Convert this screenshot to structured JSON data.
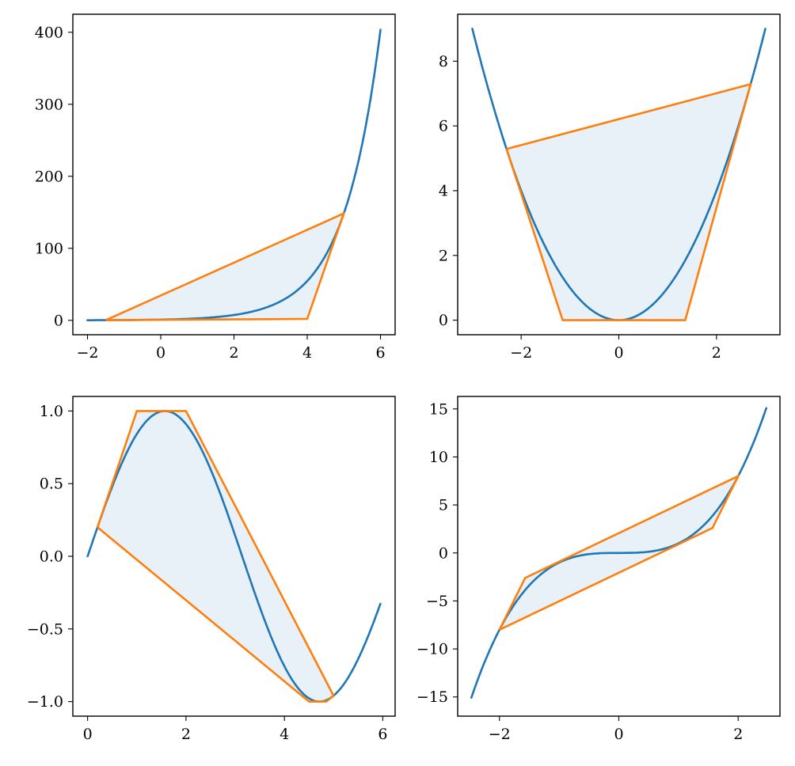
{
  "colors": {
    "curve": "#1f77b4",
    "hull": "#ff7f0e",
    "fill": "#e8f0f8",
    "axes": "#000000"
  },
  "chart_data": [
    {
      "type": "line",
      "function": "exp",
      "x_range": [
        -2,
        6
      ],
      "xlim": [
        -2.4,
        6.4
      ],
      "ylim": [
        -20,
        425
      ],
      "xticks": [
        -2,
        0,
        2,
        4,
        6
      ],
      "yticks": [
        0,
        100,
        200,
        300,
        400
      ],
      "xtick_labels": [
        "−2",
        "0",
        "2",
        "4",
        "6"
      ],
      "ytick_labels": [
        "0",
        "100",
        "200",
        "300",
        "400"
      ],
      "series": [
        {
          "x": [
            -2,
            -1,
            0,
            1,
            2,
            3,
            4,
            5,
            5.5,
            6
          ],
          "y": [
            0.14,
            0.37,
            1,
            2.7,
            7.4,
            20.1,
            54.6,
            148.4,
            244.7,
            403.4
          ]
        }
      ],
      "hull": [
        [
          -1.5,
          0.2
        ],
        [
          5,
          148.4
        ],
        [
          4,
          2
        ],
        [
          -1.5,
          0.2
        ]
      ],
      "grid": false
    },
    {
      "type": "line",
      "function": "x^2",
      "x_range": [
        -3,
        3
      ],
      "xlim": [
        -3.3,
        3.3
      ],
      "ylim": [
        -0.45,
        9.45
      ],
      "xticks": [
        -2,
        0,
        2
      ],
      "yticks": [
        0,
        2,
        4,
        6,
        8
      ],
      "xtick_labels": [
        "−2",
        "0",
        "2"
      ],
      "ytick_labels": [
        "0",
        "2",
        "4",
        "6",
        "8"
      ],
      "series": [
        {
          "x": [
            -3,
            -2,
            -1,
            0,
            1,
            2,
            3
          ],
          "y": [
            9,
            4,
            1,
            0,
            1,
            4,
            9
          ]
        }
      ],
      "hull": [
        [
          -2.3,
          5.29
        ],
        [
          2.7,
          7.29
        ],
        [
          1.36,
          0
        ],
        [
          -1.15,
          0
        ],
        [
          -2.3,
          5.29
        ]
      ],
      "grid": false
    },
    {
      "type": "line",
      "function": "sin",
      "x_range": [
        0,
        5.95
      ],
      "xlim": [
        -0.3,
        6.25
      ],
      "ylim": [
        -1.1,
        1.1
      ],
      "xticks": [
        0,
        2,
        4,
        6
      ],
      "yticks": [
        -1,
        -0.5,
        0,
        0.5,
        1
      ],
      "xtick_labels": [
        "0",
        "2",
        "4",
        "6"
      ],
      "ytick_labels": [
        "−1.0",
        "−0.5",
        "0.0",
        "0.5",
        "1.0"
      ],
      "series": [
        {
          "x": [
            0,
            0.5,
            1,
            1.57,
            2,
            2.5,
            3,
            3.5,
            4,
            4.71,
            5,
            5.5,
            5.95
          ],
          "y": [
            0,
            0.48,
            0.84,
            1,
            0.91,
            0.6,
            0.14,
            -0.35,
            -0.76,
            -1,
            -0.96,
            -0.71,
            -0.33
          ]
        }
      ],
      "hull": [
        [
          0.2,
          0.2
        ],
        [
          1,
          1
        ],
        [
          2,
          1
        ],
        [
          5,
          -0.96
        ],
        [
          4.85,
          -1
        ],
        [
          4.5,
          -1
        ],
        [
          0.2,
          0.2
        ]
      ],
      "grid": false
    },
    {
      "type": "line",
      "function": "x^3",
      "x_range": [
        -2.47,
        2.47
      ],
      "xlim": [
        -2.7,
        2.7
      ],
      "ylim": [
        -17,
        16.3
      ],
      "xticks": [
        -2,
        0,
        2
      ],
      "yticks": [
        -15,
        -10,
        -5,
        0,
        5,
        10,
        15
      ],
      "xtick_labels": [
        "−2",
        "0",
        "2"
      ],
      "ytick_labels": [
        "−15",
        "−10",
        "−5",
        "0",
        "5",
        "10",
        "15"
      ],
      "series": [
        {
          "x": [
            -2.47,
            -2,
            -1.5,
            -1,
            -0.5,
            0,
            0.5,
            1,
            1.5,
            2,
            2.47
          ],
          "y": [
            -15.07,
            -8,
            -3.38,
            -1,
            -0.13,
            0,
            0.13,
            1,
            3.38,
            8,
            15.07
          ]
        }
      ],
      "hull": [
        [
          -2,
          -8
        ],
        [
          -1.57,
          -2.6
        ],
        [
          2,
          8
        ],
        [
          1.57,
          2.6
        ],
        [
          -2,
          -8
        ]
      ],
      "grid": false
    }
  ]
}
